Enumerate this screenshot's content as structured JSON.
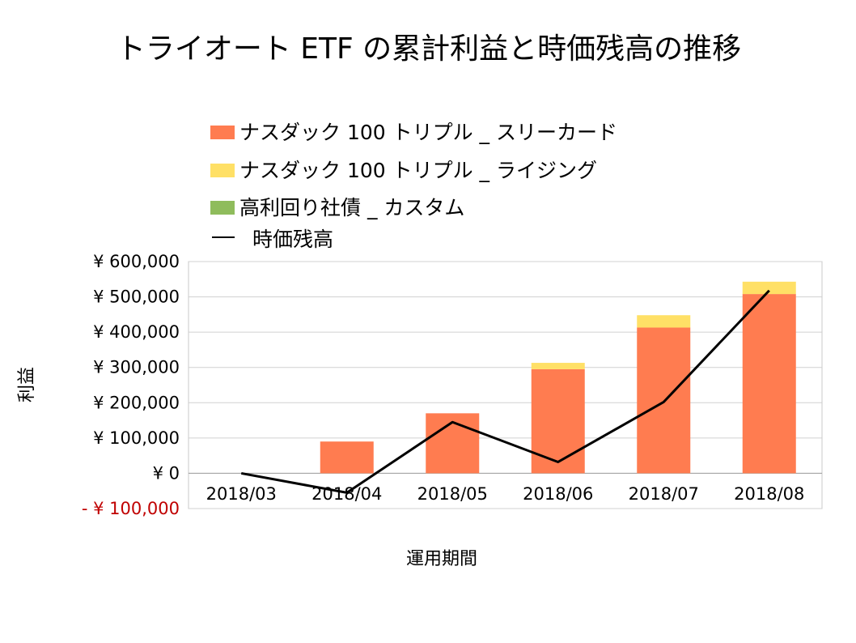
{
  "chart_data": {
    "type": "bar",
    "stacked": true,
    "title": "トライオート ETF の累計利益と時価残高の推移",
    "xlabel": "運用期間",
    "ylabel": "利益",
    "categories": [
      "2018/03",
      "2018/04",
      "2018/05",
      "2018/06",
      "2018/07",
      "2018/08"
    ],
    "ylim": [
      -100000,
      600000
    ],
    "ytick_values": [
      600000,
      500000,
      400000,
      300000,
      200000,
      100000,
      0,
      -100000
    ],
    "ytick_labels": [
      "¥ 600,000",
      "¥ 500,000",
      "¥ 400,000",
      "¥ 300,000",
      "¥ 200,000",
      "¥ 100,000",
      "¥ 0",
      "- ¥ 100,000"
    ],
    "negative_tick_color": "#c00000",
    "grid": true,
    "legend_position": "top",
    "series": [
      {
        "name": "ナスダック 100 トリプル _ スリーカード",
        "kind": "bar",
        "color": "#ff7c50",
        "values": [
          0,
          90000,
          170000,
          295000,
          413000,
          508000
        ]
      },
      {
        "name": "ナスダック 100 トリプル _ ライジング",
        "kind": "bar",
        "color": "#ffe066",
        "values": [
          0,
          0,
          0,
          18000,
          35000,
          35000
        ]
      },
      {
        "name": "高利回り社債 _ カスタム",
        "kind": "bar",
        "color": "#8fbc5c",
        "values": [
          0,
          0,
          0,
          0,
          0,
          0
        ]
      },
      {
        "name": "時価残高",
        "kind": "line",
        "color": "#000000",
        "values": [
          0,
          -55000,
          145000,
          32000,
          202000,
          518000
        ]
      }
    ]
  }
}
